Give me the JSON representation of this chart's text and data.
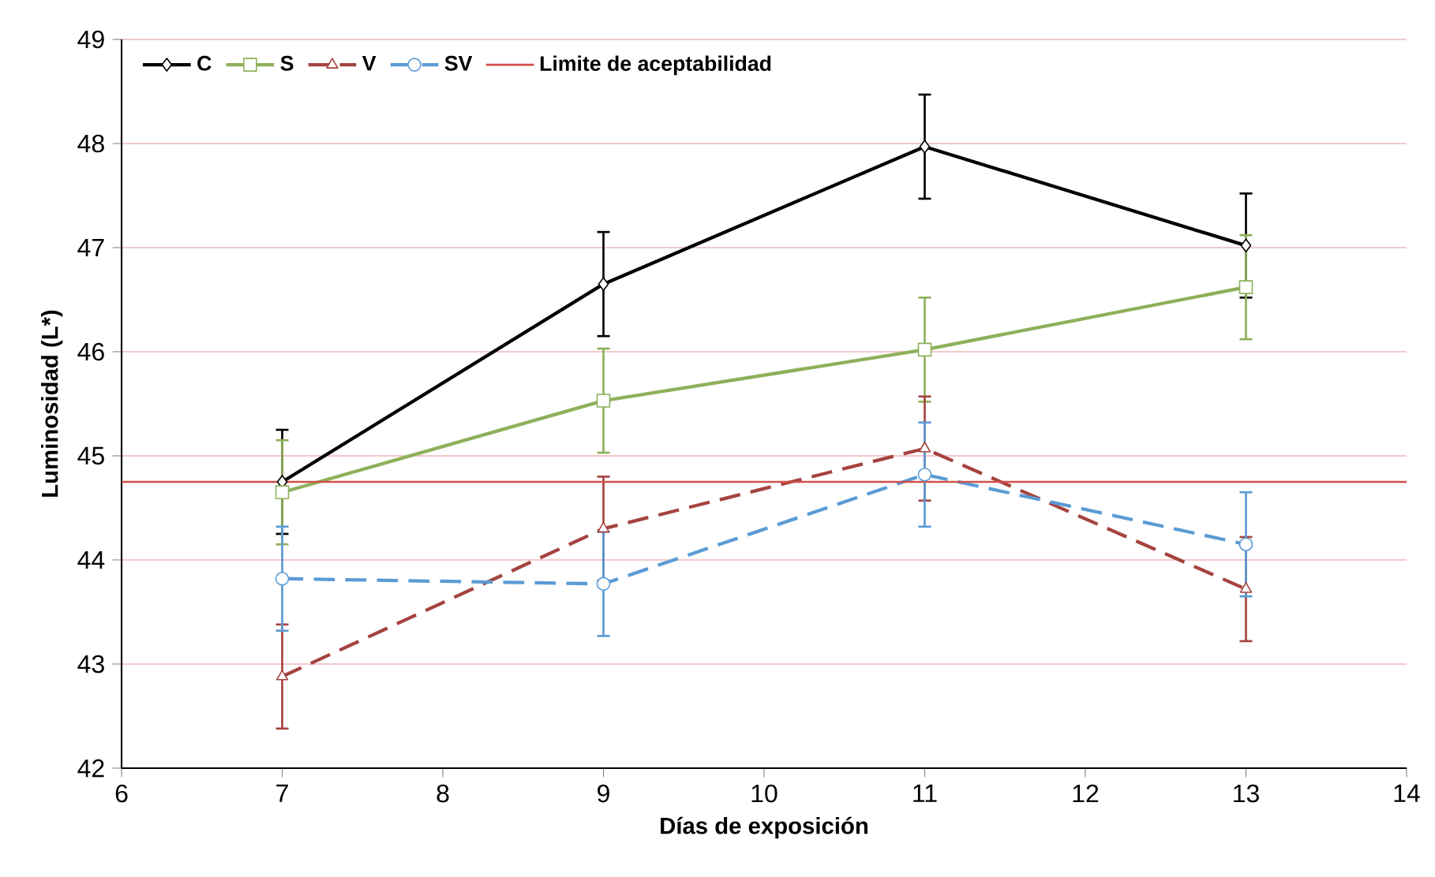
{
  "chart_data": {
    "type": "line",
    "xlabel": "Días de exposición",
    "ylabel": "Luminosidad (L*)",
    "x": [
      7,
      9,
      11,
      13
    ],
    "series": [
      {
        "name": "C",
        "color": "#000000",
        "marker": "diamond",
        "line_style": "solid",
        "values": [
          44.75,
          46.65,
          47.97,
          47.02
        ],
        "errors": [
          0.5,
          0.5,
          0.5,
          0.5
        ]
      },
      {
        "name": "S",
        "color": "#8db05a",
        "marker": "square",
        "line_style": "solid",
        "values": [
          44.65,
          45.53,
          46.02,
          46.62
        ],
        "errors": [
          0.5,
          0.5,
          0.5,
          0.5
        ]
      },
      {
        "name": "V",
        "color": "#a5433f",
        "marker": "triangle",
        "line_style": "dashed",
        "values": [
          42.88,
          44.3,
          45.07,
          43.72
        ],
        "errors": [
          0.5,
          0.5,
          0.5,
          0.5
        ]
      },
      {
        "name": "SV",
        "color": "#5b9bd5",
        "marker": "circle",
        "line_style": "dashed",
        "values": [
          43.82,
          43.77,
          44.82,
          44.15
        ],
        "errors": [
          0.5,
          0.5,
          0.5,
          0.5
        ]
      }
    ],
    "ref_lines": [
      {
        "axis": "y",
        "value": 44.75,
        "label": "Limite de aceptabilidad",
        "color": "#d0504a"
      }
    ],
    "xlim": [
      6,
      14
    ],
    "ylim": [
      42,
      49
    ],
    "xticks": [
      6,
      7,
      8,
      9,
      10,
      11,
      12,
      13,
      14
    ],
    "yticks": [
      42,
      43,
      44,
      45,
      46,
      47,
      48,
      49
    ],
    "grid": "y",
    "legend": "top left"
  }
}
